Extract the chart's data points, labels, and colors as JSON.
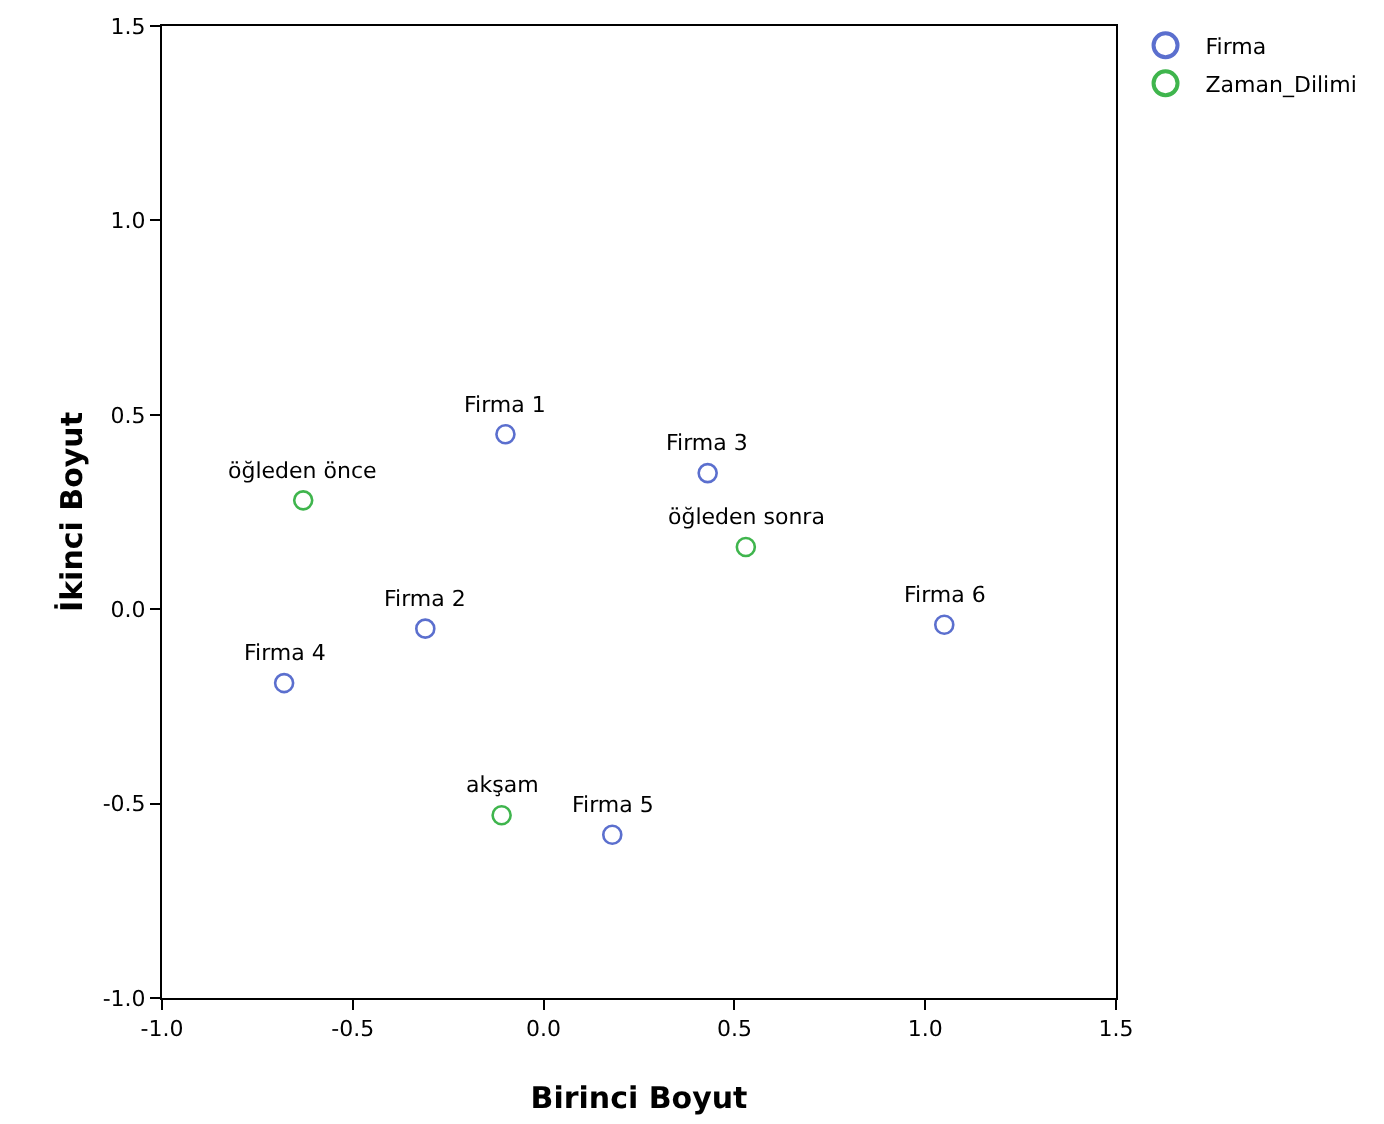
{
  "chart_data": {
    "type": "scatter",
    "xlabel": "Birinci Boyut",
    "ylabel": "İkinci Boyut",
    "xlim": [
      -1.0,
      1.5
    ],
    "xticks": [
      {
        "value": -1,
        "label": "-1.0"
      },
      {
        "value": -0.5,
        "label": "-0.5"
      },
      {
        "value": 0,
        "label": "0.0"
      },
      {
        "value": 0.5,
        "label": "0.5"
      },
      {
        "value": 1,
        "label": "1.0"
      },
      {
        "value": 1.5,
        "label": "1.5"
      }
    ],
    "ylim": [
      -1.0,
      1.5
    ],
    "yticks": [
      {
        "value": -1,
        "label": "-1.0"
      },
      {
        "value": -0.5,
        "label": "-0.5"
      },
      {
        "value": 0,
        "label": "0.0"
      },
      {
        "value": 0.5,
        "label": "0.5"
      },
      {
        "value": 1,
        "label": "1.0"
      },
      {
        "value": 1.5,
        "label": "1.5"
      }
    ],
    "grid": false,
    "legend": "top right",
    "marker": "circle",
    "series": [
      {
        "name": "Firma",
        "color": "#5b6fce",
        "x": [
          -0.1,
          -0.31,
          0.43,
          -0.68,
          0.18,
          1.05
        ],
        "values": [
          0.45,
          -0.05,
          0.35,
          -0.19,
          -0.58,
          -0.04
        ]
      },
      {
        "name": "Zaman_Dilimi",
        "color": "#3fb54d",
        "x": [
          -0.63,
          0.53,
          -0.11
        ],
        "values": [
          0.28,
          0.16,
          -0.53
        ]
      }
    ],
    "annotations": [
      {
        "text": "Firma 1",
        "x": -0.1,
        "y": 0.45
      },
      {
        "text": "Firma 2",
        "x": -0.31,
        "y": -0.05
      },
      {
        "text": "Firma 3",
        "x": 0.43,
        "y": 0.35
      },
      {
        "text": "Firma 4",
        "x": -0.68,
        "y": -0.19
      },
      {
        "text": "Firma 5",
        "x": 0.18,
        "y": -0.58
      },
      {
        "text": "Firma 6",
        "x": 1.05,
        "y": -0.04
      },
      {
        "text": "öğleden önce",
        "x": -0.63,
        "y": 0.28
      },
      {
        "text": "öğleden sonra",
        "x": 0.53,
        "y": 0.16
      },
      {
        "text": "akşam",
        "x": -0.11,
        "y": -0.53
      }
    ]
  }
}
